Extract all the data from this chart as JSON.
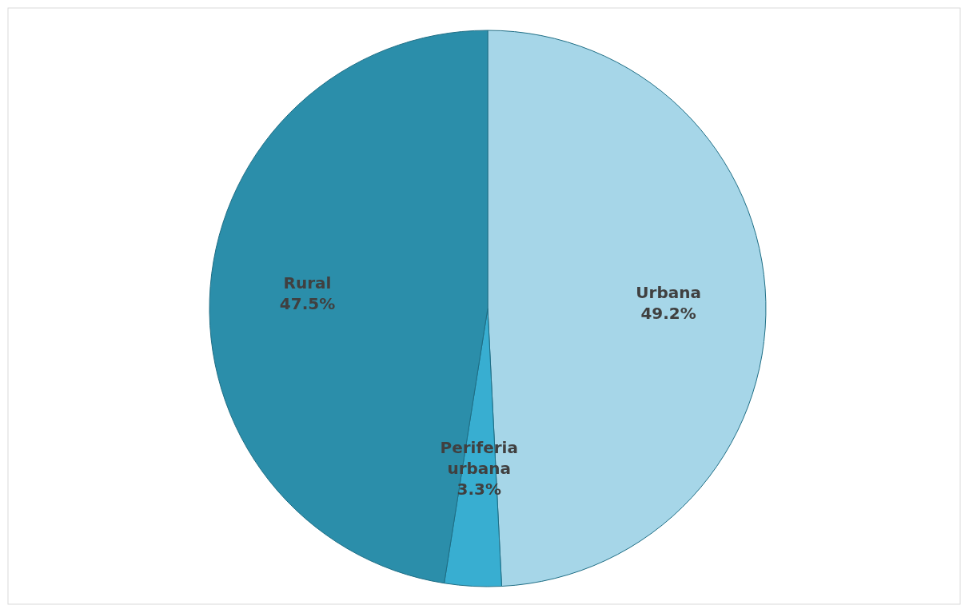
{
  "chart_data": {
    "type": "pie",
    "categories": [
      "Urbana",
      "Periferia urbana",
      "Rural"
    ],
    "values": [
      49.2,
      3.3,
      47.5
    ],
    "colors": [
      "#a6d6e8",
      "#38aed1",
      "#2b8eaa"
    ],
    "value_labels": [
      "49.2%",
      "3.3%",
      "47.5%"
    ]
  }
}
